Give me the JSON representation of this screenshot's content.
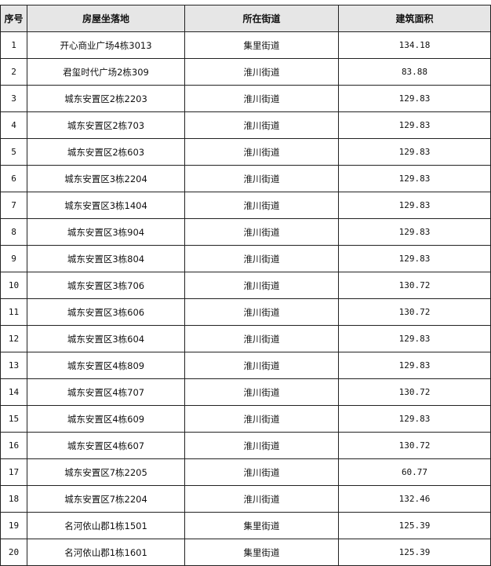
{
  "headers": [
    "序号",
    "房屋坐落地",
    "所在街道",
    "建筑面积"
  ],
  "rows": [
    [
      "1",
      "开心商业广场4栋3013",
      "集里街道",
      "134.18"
    ],
    [
      "2",
      "君玺时代广场2栋309",
      "淮川街道",
      "83.88"
    ],
    [
      "3",
      "城东安置区2栋2203",
      "淮川街道",
      "129.83"
    ],
    [
      "4",
      "城东安置区2栋703",
      "淮川街道",
      "129.83"
    ],
    [
      "5",
      "城东安置区2栋603",
      "淮川街道",
      "129.83"
    ],
    [
      "6",
      "城东安置区3栋2204",
      "淮川街道",
      "129.83"
    ],
    [
      "7",
      "城东安置区3栋1404",
      "淮川街道",
      "129.83"
    ],
    [
      "8",
      "城东安置区3栋904",
      "淮川街道",
      "129.83"
    ],
    [
      "9",
      "城东安置区3栋804",
      "淮川街道",
      "129.83"
    ],
    [
      "10",
      "城东安置区3栋706",
      "淮川街道",
      "130.72"
    ],
    [
      "11",
      "城东安置区3栋606",
      "淮川街道",
      "130.72"
    ],
    [
      "12",
      "城东安置区3栋604",
      "淮川街道",
      "129.83"
    ],
    [
      "13",
      "城东安置区4栋809",
      "淮川街道",
      "129.83"
    ],
    [
      "14",
      "城东安置区4栋707",
      "淮川街道",
      "130.72"
    ],
    [
      "15",
      "城东安置区4栋609",
      "淮川街道",
      "129.83"
    ],
    [
      "16",
      "城东安置区4栋607",
      "淮川街道",
      "130.72"
    ],
    [
      "17",
      "城东安置区7栋2205",
      "淮川街道",
      "60.77"
    ],
    [
      "18",
      "城东安置区7栋2204",
      "淮川街道",
      "132.46"
    ],
    [
      "19",
      "名河依山郡1栋1501",
      "集里街道",
      "125.39"
    ],
    [
      "20",
      "名河依山郡1栋1601",
      "集里街道",
      "125.39"
    ]
  ]
}
